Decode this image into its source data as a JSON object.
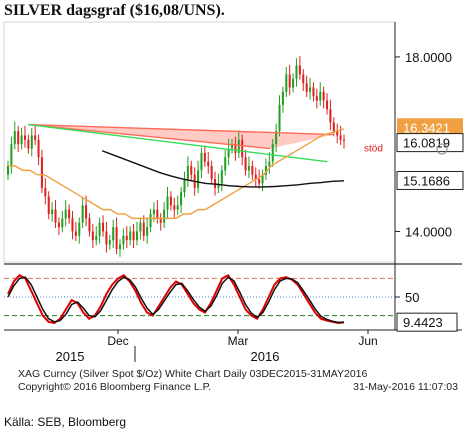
{
  "title": "SILVER  dagsgraf ($16,08/UNS).",
  "source": "Källa: SEB, Bloomberg",
  "footer": {
    "line1": "XAG Curncy (Silver Spot  $/Oz) White Chart  Daily 03DEC2015-31MAY2016",
    "line2": "Copyright© 2016 Bloomberg Finance L.P.",
    "line3": "31-May-2016 11:07:03"
  },
  "colors": {
    "up": "#22a022",
    "down": "#e02020",
    "ma_orange": "#f0a040",
    "ma_black": "#111111",
    "resistance_band": "#ff6a5a",
    "trend_green": "#33dd55",
    "stoch_red": "#e00000",
    "stoch_black": "#111111"
  },
  "chart_data": [
    {
      "type": "candlestick",
      "title": "",
      "x_labels": [
        "Dec",
        "Mar",
        "Jun"
      ],
      "year_labels": [
        "2015",
        "2016"
      ],
      "y_ticks": [
        14.0,
        18.0
      ],
      "ylim": [
        13.3,
        18.8
      ],
      "price_labels": [
        {
          "text": "16.3421",
          "value": 16.3421,
          "style": "orange"
        },
        {
          "text": "16.0819",
          "value": 16.0819,
          "style": "black"
        },
        {
          "text": "15.1686",
          "value": 15.1686,
          "style": "black"
        }
      ],
      "annotation": "stöd",
      "close": [
        15.5,
        16.0,
        16.3,
        16.0,
        16.2,
        16.1,
        15.9,
        16.2,
        16.1,
        15.7,
        15.0,
        14.8,
        14.4,
        14.5,
        14.2,
        14.1,
        14.3,
        14.5,
        14.3,
        14.0,
        13.9,
        14.2,
        14.6,
        14.3,
        14.0,
        13.8,
        13.9,
        14.2,
        14.0,
        13.7,
        13.8,
        14.1,
        13.6,
        13.7,
        13.9,
        13.8,
        14.0,
        13.8,
        14.0,
        14.2,
        13.9,
        14.1,
        14.4,
        14.5,
        14.3,
        14.2,
        14.5,
        14.8,
        14.6,
        14.5,
        14.6,
        14.9,
        15.2,
        15.5,
        15.3,
        15.0,
        15.4,
        15.8,
        15.6,
        15.5,
        15.2,
        15.0,
        15.1,
        15.4,
        15.7,
        15.9,
        16.0,
        15.8,
        16.1,
        15.7,
        15.4,
        15.5,
        15.3,
        15.2,
        15.1,
        15.3,
        15.5,
        15.6,
        16.0,
        16.3,
        16.9,
        17.2,
        17.6,
        17.3,
        17.5,
        17.8,
        17.6,
        17.4,
        17.2,
        17.3,
        17.1,
        17.0,
        17.2,
        17.0,
        16.8,
        16.5,
        16.3,
        16.2,
        16.1,
        16.08
      ],
      "series": [
        {
          "name": "",
          "color": "#f0a040",
          "values": [
            15.5,
            15.5,
            15.4,
            15.4,
            15.3,
            15.3,
            15.2,
            15.1,
            15.0,
            14.9,
            14.8,
            14.7,
            14.6,
            14.5,
            14.5,
            14.4,
            14.4,
            14.3,
            14.3,
            14.3,
            14.3,
            14.3,
            14.3,
            14.3,
            14.4,
            14.4,
            14.5,
            14.5,
            14.6,
            14.7,
            14.8,
            14.9,
            15.0,
            15.1,
            15.2,
            15.3,
            15.5,
            15.6,
            15.7,
            15.8,
            15.9,
            16.0,
            16.1,
            16.2,
            16.25,
            16.3,
            16.35
          ]
        },
        {
          "name": "",
          "color": "#111111",
          "values": [
            15.85,
            15.75,
            15.65,
            15.55,
            15.45,
            15.35,
            15.27,
            15.2,
            15.15,
            15.1,
            15.08,
            15.05,
            15.03,
            15.02,
            15.02,
            15.03,
            15.05,
            15.07,
            15.1,
            15.12,
            15.15,
            15.16
          ]
        }
      ],
      "lines": [
        {
          "name": "",
          "color": "#ff6a5a",
          "from": [
            0.06,
            16.45
          ],
          "to": [
            0.78,
            15.9
          ]
        },
        {
          "name": "",
          "color": "#ff6a5a",
          "from": [
            0.06,
            16.45
          ],
          "to": [
            0.97,
            16.22
          ]
        },
        {
          "name": "",
          "color": "#33dd55",
          "from": [
            0.06,
            16.45
          ],
          "to": [
            0.95,
            15.6
          ]
        }
      ]
    },
    {
      "type": "line",
      "title": "",
      "y_ticks": [
        50
      ],
      "ylim": [
        0,
        100
      ],
      "value_label": "9.4423",
      "reference_levels": [
        80,
        50,
        20
      ],
      "series": [
        {
          "name": "",
          "color": "#e00000",
          "values": [
            55,
            75,
            85,
            80,
            60,
            40,
            20,
            10,
            8,
            15,
            30,
            45,
            40,
            25,
            15,
            20,
            35,
            55,
            70,
            80,
            85,
            75,
            60,
            40,
            25,
            20,
            35,
            50,
            65,
            75,
            70,
            55,
            40,
            30,
            25,
            40,
            60,
            80,
            85,
            70,
            50,
            30,
            20,
            15,
            30,
            50,
            70,
            80,
            82,
            78,
            70,
            55,
            40,
            25,
            15,
            12,
            10,
            8,
            9
          ]
        },
        {
          "name": "",
          "color": "#111111",
          "values": [
            50,
            68,
            80,
            82,
            70,
            50,
            30,
            15,
            10,
            12,
            22,
            38,
            42,
            32,
            20,
            18,
            28,
            45,
            62,
            75,
            82,
            78,
            66,
            48,
            32,
            22,
            30,
            44,
            58,
            70,
            72,
            60,
            46,
            34,
            27,
            35,
            52,
            72,
            82,
            76,
            58,
            38,
            24,
            17,
            25,
            42,
            62,
            76,
            80,
            79,
            73,
            60,
            46,
            31,
            19,
            14,
            11,
            9,
            9.4
          ]
        }
      ]
    }
  ]
}
